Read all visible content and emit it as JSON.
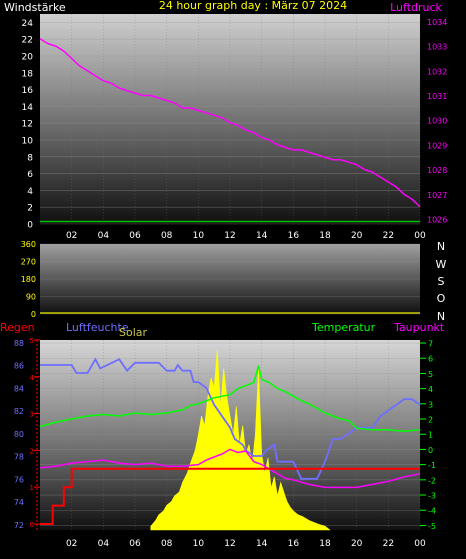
{
  "top_panel": {
    "left_label": "Windstärke",
    "title": "24 hour graph day : März 07 2024",
    "right_label": "Luftdruck"
  },
  "wind_panel": {
    "right_letters": [
      "N",
      "W",
      "S",
      "O",
      "N"
    ]
  },
  "bottom_panel": {
    "label_regen": "Regen",
    "label_luftfeuchte": "Luftfeuchte",
    "label_solar": "Solar",
    "label_temperatur": "Temperatur",
    "label_taupunkt": "Taupunkt"
  },
  "colors": {
    "title_yellow": "#ffff00",
    "windstaerke_white": "#ffffff",
    "luftdruck_magenta": "#ff00ff",
    "regen_red": "#ff0000",
    "luftfeuchte_blue": "#6f6fff",
    "solar_yellow": "#ffff00",
    "temperatur_green": "#00ff00",
    "taupunkt_magenta": "#ff00ff",
    "wind_baseline_green": "#00c000",
    "winddir_baseline_yellow": "#c8c800"
  },
  "chart_data": [
    {
      "type": "line",
      "name": "top",
      "x_ticks": [
        "02",
        "04",
        "06",
        "08",
        "10",
        "12",
        "14",
        "16",
        "18",
        "20",
        "22",
        "00"
      ],
      "y_left_ticks": [
        "0",
        "2",
        "4",
        "6",
        "8",
        "10",
        "12",
        "14",
        "16",
        "18",
        "20",
        "22",
        "24"
      ],
      "y_left_range": [
        0,
        25
      ],
      "y_right_ticks": [
        "1026",
        "1027",
        "1028",
        "1029",
        "1030",
        "1031",
        "1032",
        "1033",
        "1034"
      ],
      "y_right_range": [
        1025.8,
        1034.3
      ],
      "series": [
        {
          "name": "Luftdruck",
          "axis": "right",
          "x": [
            0.0,
            0.5,
            1.0,
            1.5,
            2.0,
            2.5,
            3.0,
            3.5,
            4.0,
            4.5,
            5.0,
            5.5,
            6.0,
            6.5,
            7.0,
            7.5,
            8.0,
            8.5,
            9.0,
            9.5,
            10.0,
            10.5,
            11.0,
            11.5,
            12.0,
            12.5,
            13.0,
            13.5,
            14.0,
            14.5,
            15.0,
            15.5,
            16.0,
            16.5,
            17.0,
            17.5,
            18.0,
            18.5,
            19.0,
            19.5,
            20.0,
            20.5,
            21.0,
            21.5,
            22.0,
            22.5,
            23.0,
            23.5,
            24.0
          ],
          "y": [
            1033.3,
            1033.1,
            1033.0,
            1032.8,
            1032.5,
            1032.2,
            1032.0,
            1031.8,
            1031.6,
            1031.5,
            1031.3,
            1031.2,
            1031.1,
            1031.0,
            1031.0,
            1030.9,
            1030.8,
            1030.7,
            1030.5,
            1030.5,
            1030.4,
            1030.3,
            1030.2,
            1030.1,
            1029.9,
            1029.8,
            1029.6,
            1029.5,
            1029.3,
            1029.2,
            1029.0,
            1028.9,
            1028.8,
            1028.8,
            1028.7,
            1028.6,
            1028.5,
            1028.4,
            1028.4,
            1028.3,
            1028.2,
            1028.0,
            1027.9,
            1027.7,
            1027.5,
            1027.3,
            1027.0,
            1026.8,
            1026.5
          ]
        },
        {
          "name": "Windstärke",
          "axis": "left",
          "x": [
            0,
            24
          ],
          "y": [
            0.3,
            0.3
          ]
        }
      ]
    },
    {
      "type": "line",
      "name": "wind_direction",
      "x_ticks": [
        "02",
        "04",
        "06",
        "08",
        "10",
        "12",
        "14",
        "16",
        "18",
        "20",
        "22",
        "00"
      ],
      "y_ticks": [
        "0",
        "90",
        "180",
        "270",
        "360"
      ],
      "y_range": [
        0,
        360
      ],
      "series": [
        {
          "name": "direction",
          "x": [
            0,
            24
          ],
          "y": [
            0,
            0
          ]
        }
      ]
    },
    {
      "type": "line",
      "name": "bottom",
      "x_ticks": [
        "02",
        "04",
        "06",
        "08",
        "10",
        "12",
        "14",
        "16",
        "18",
        "20",
        "22",
        "00"
      ],
      "y_left_ticks": [
        "72",
        "74",
        "76",
        "78",
        "80",
        "82",
        "84",
        "86",
        "88"
      ],
      "y_left_range": [
        71.5,
        88.2
      ],
      "y_regen_ticks": [
        "0",
        "1",
        "2",
        "3",
        "4",
        "5"
      ],
      "y_right_ticks": [
        "7",
        "6",
        "5",
        "4",
        "3",
        "2",
        "1",
        "0",
        "-1",
        "-2",
        "-3",
        "-4",
        "-5"
      ],
      "y_right_range": [
        -5.3,
        7.2
      ],
      "series": [
        {
          "name": "Luftfeuchte",
          "axis": "left",
          "x": [
            0.0,
            1.5,
            2.0,
            2.3,
            3.0,
            3.5,
            3.8,
            5.0,
            5.5,
            6.0,
            6.5,
            7.0,
            7.5,
            8.0,
            8.5,
            8.7,
            9.0,
            9.5,
            9.7,
            10.0,
            10.5,
            11.0,
            11.5,
            12.0,
            12.3,
            12.8,
            13.0,
            13.5,
            14.0,
            14.3,
            14.8,
            15.0,
            16.0,
            16.5,
            17.0,
            17.5,
            18.0,
            18.5,
            19.0,
            20.0,
            20.5,
            21.0,
            21.5,
            22.0,
            22.5,
            23.0,
            23.5,
            24.0
          ],
          "y": [
            86.0,
            86.0,
            86.0,
            85.3,
            85.3,
            86.5,
            85.7,
            86.5,
            85.5,
            86.2,
            86.2,
            86.2,
            86.2,
            85.5,
            85.5,
            86.0,
            85.5,
            85.5,
            84.5,
            84.5,
            84.0,
            82.5,
            81.5,
            80.5,
            79.5,
            79.0,
            78.5,
            78.0,
            78.0,
            78.5,
            79.0,
            77.5,
            77.5,
            76.0,
            76.0,
            76.0,
            77.5,
            79.5,
            79.5,
            80.5,
            80.5,
            80.5,
            81.5,
            82.0,
            82.5,
            83.0,
            83.0,
            82.5
          ]
        },
        {
          "name": "Temperatur",
          "axis": "right",
          "x": [
            0.0,
            1.0,
            2.0,
            3.0,
            4.0,
            5.0,
            6.0,
            7.0,
            8.0,
            9.0,
            9.5,
            10.0,
            10.5,
            11.0,
            11.5,
            12.0,
            12.5,
            13.0,
            13.5,
            13.8,
            14.0,
            14.5,
            15.0,
            15.5,
            16.0,
            16.5,
            17.0,
            17.5,
            18.0,
            18.5,
            19.0,
            19.5,
            20.0,
            21.0,
            22.0,
            23.0,
            24.0
          ],
          "y": [
            1.5,
            1.8,
            2.0,
            2.2,
            2.3,
            2.2,
            2.4,
            2.3,
            2.4,
            2.6,
            2.9,
            3.0,
            3.2,
            3.4,
            3.5,
            3.6,
            4.0,
            4.2,
            4.4,
            5.5,
            4.6,
            4.4,
            4.0,
            3.8,
            3.5,
            3.2,
            3.0,
            2.7,
            2.4,
            2.2,
            2.0,
            1.9,
            1.4,
            1.3,
            1.3,
            1.2,
            1.3
          ]
        },
        {
          "name": "Taupunkt",
          "axis": "right",
          "x": [
            0.0,
            1.0,
            2.0,
            3.0,
            4.0,
            5.0,
            6.0,
            7.0,
            8.0,
            9.0,
            10.0,
            10.5,
            11.0,
            11.5,
            12.0,
            12.5,
            13.0,
            13.5,
            14.0,
            14.5,
            15.0,
            15.5,
            16.0,
            17.0,
            18.0,
            19.0,
            20.0,
            21.0,
            22.0,
            23.0,
            24.0
          ],
          "y": [
            -1.2,
            -1.1,
            -0.9,
            -0.8,
            -0.7,
            -0.9,
            -1.0,
            -0.9,
            -1.1,
            -1.1,
            -1.0,
            -0.7,
            -0.5,
            -0.3,
            0.0,
            -0.2,
            -0.1,
            -0.8,
            -1.0,
            -1.3,
            -1.6,
            -1.9,
            -2.0,
            -2.3,
            -2.5,
            -2.5,
            -2.5,
            -2.3,
            -2.1,
            -1.8,
            -1.6
          ]
        },
        {
          "name": "Regen",
          "axis": "regen",
          "x": [
            0.0,
            0.8,
            0.8,
            1.5,
            1.5,
            2.0,
            2.0,
            24.0
          ],
          "y": [
            0.0,
            0.0,
            0.5,
            0.5,
            1.0,
            1.0,
            1.5,
            1.5
          ]
        },
        {
          "name": "Solar",
          "axis": "solar",
          "x": [
            7.0,
            7.3,
            7.5,
            7.8,
            8.0,
            8.3,
            8.5,
            8.8,
            9.0,
            9.3,
            9.5,
            9.8,
            10.0,
            10.2,
            10.4,
            10.6,
            10.8,
            11.0,
            11.2,
            11.4,
            11.6,
            11.8,
            12.0,
            12.2,
            12.4,
            12.6,
            12.8,
            13.0,
            13.2,
            13.4,
            13.6,
            13.8,
            14.0,
            14.2,
            14.4,
            14.6,
            14.8,
            15.0,
            15.2,
            15.4,
            15.6,
            15.8,
            16.0,
            16.3,
            16.6,
            17.0,
            17.3,
            17.6,
            18.0,
            18.3
          ],
          "y": [
            0.02,
            0.05,
            0.08,
            0.1,
            0.13,
            0.15,
            0.18,
            0.2,
            0.25,
            0.3,
            0.35,
            0.42,
            0.5,
            0.6,
            0.55,
            0.7,
            0.8,
            0.75,
            0.95,
            0.65,
            0.85,
            0.7,
            0.6,
            0.5,
            0.65,
            0.45,
            0.55,
            0.4,
            0.45,
            0.35,
            0.5,
            0.85,
            0.4,
            0.3,
            0.38,
            0.22,
            0.28,
            0.18,
            0.25,
            0.2,
            0.15,
            0.12,
            0.1,
            0.08,
            0.07,
            0.05,
            0.04,
            0.03,
            0.02,
            0.0
          ]
        }
      ]
    }
  ]
}
